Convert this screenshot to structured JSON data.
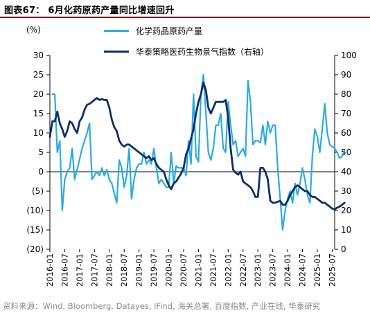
{
  "figure": {
    "title": "图表67： 6月化药原药产量同比增速回升",
    "left_unit": "(%)",
    "source": "资料来源：Wind, Bloomberg, Datayes, iFind, 海关总署, 百度指数, 产业在线, 华泰研究"
  },
  "colors": {
    "series_light": "#29ABE2",
    "series_dark": "#0B2E6B",
    "title_rule": "#8a1010"
  },
  "chart_data": {
    "type": "line",
    "title": "6月化药原药产量同比增速回升",
    "x_start": "2016-01",
    "x_end": "2025-08",
    "x_tick_labels": [
      "2016-01",
      "2016-07",
      "2017-01",
      "2017-07",
      "2018-01",
      "2018-07",
      "2019-01",
      "2019-07",
      "2020-01",
      "2020-07",
      "2021-01",
      "2021-07",
      "2022-01",
      "2022-07",
      "2023-01",
      "2023-07",
      "2024-01",
      "2024-07",
      "2025-01",
      "2025-07"
    ],
    "left_axis": {
      "label": "(%)",
      "ylim": [
        -20,
        30
      ],
      "ticks": [
        -20,
        -15,
        -10,
        -5,
        0,
        5,
        10,
        15,
        20,
        25,
        30
      ],
      "tick_labels": [
        "(20)",
        "(15)",
        "(10)",
        "(5)",
        "0",
        "5",
        "10",
        "15",
        "20",
        "25",
        "30"
      ]
    },
    "right_axis": {
      "ylim": [
        0,
        100
      ],
      "ticks": [
        0,
        10,
        20,
        30,
        40,
        50,
        60,
        70,
        80,
        90,
        100
      ],
      "tick_labels": [
        "0",
        "10",
        "20",
        "30",
        "40",
        "50",
        "60",
        "70",
        "80",
        "90",
        "100"
      ]
    },
    "grid": false,
    "legend_position": "top-center",
    "series": [
      {
        "name": "化学药品原药产量",
        "axis": "left",
        "color": "#29ABE2",
        "points": [
          [
            "2016-02",
            20
          ],
          [
            "2016-03",
            20
          ],
          [
            "2016-04",
            5
          ],
          [
            "2016-05",
            8
          ],
          [
            "2016-06",
            -10
          ],
          [
            "2016-07",
            -2
          ],
          [
            "2016-08",
            0
          ],
          [
            "2016-09",
            1
          ],
          [
            "2016-10",
            6
          ],
          [
            "2016-11",
            -2
          ],
          [
            "2016-12",
            0.5
          ],
          [
            "2017-02",
            6
          ],
          [
            "2017-04",
            10
          ],
          [
            "2017-05",
            12.5
          ],
          [
            "2017-06",
            -2
          ],
          [
            "2017-07",
            -1
          ],
          [
            "2017-08",
            0
          ],
          [
            "2017-09",
            -1
          ],
          [
            "2017-10",
            1
          ],
          [
            "2017-11",
            -1
          ],
          [
            "2017-12",
            0.5
          ],
          [
            "2018-01",
            -2
          ],
          [
            "2018-02",
            -3
          ],
          [
            "2018-03",
            -5.5
          ],
          [
            "2018-04",
            -8
          ],
          [
            "2018-05",
            3
          ],
          [
            "2018-06",
            1
          ],
          [
            "2018-07",
            -4
          ],
          [
            "2018-08",
            -1
          ],
          [
            "2018-09",
            6
          ],
          [
            "2018-10",
            -7
          ],
          [
            "2018-11",
            -2
          ],
          [
            "2018-12",
            1
          ],
          [
            "2019-01",
            2
          ],
          [
            "2019-02",
            2
          ],
          [
            "2019-03",
            5
          ],
          [
            "2019-04",
            2
          ],
          [
            "2019-05",
            3
          ],
          [
            "2019-06",
            2
          ],
          [
            "2019-07",
            6
          ],
          [
            "2019-08",
            1
          ],
          [
            "2019-09",
            -3
          ],
          [
            "2019-10",
            -2
          ],
          [
            "2019-11",
            -3
          ],
          [
            "2019-12",
            -4
          ],
          [
            "2020-01",
            -4
          ],
          [
            "2020-02",
            5
          ],
          [
            "2020-03",
            -3
          ],
          [
            "2020-04",
            1.5
          ],
          [
            "2020-05",
            1
          ],
          [
            "2020-06",
            1
          ],
          [
            "2020-07",
            1
          ],
          [
            "2020-08",
            -1
          ],
          [
            "2020-09",
            8
          ],
          [
            "2020-10",
            2
          ],
          [
            "2020-11",
            20
          ],
          [
            "2020-12",
            4
          ],
          [
            "2021-01",
            2.5
          ],
          [
            "2021-02",
            20
          ],
          [
            "2021-03",
            25
          ],
          [
            "2021-04",
            15
          ],
          [
            "2021-05",
            5
          ],
          [
            "2021-06",
            3
          ],
          [
            "2021-07",
            6
          ],
          [
            "2021-08",
            12
          ],
          [
            "2021-09",
            12
          ],
          [
            "2021-10",
            15
          ],
          [
            "2021-11",
            6
          ],
          [
            "2021-12",
            5
          ],
          [
            "2022-01",
            18
          ],
          [
            "2022-02",
            12
          ],
          [
            "2022-03",
            7
          ],
          [
            "2022-04",
            8
          ],
          [
            "2022-05",
            4
          ],
          [
            "2022-06",
            5
          ],
          [
            "2022-07",
            6
          ],
          [
            "2022-08",
            4
          ],
          [
            "2022-09",
            23.5
          ],
          [
            "2022-10",
            18
          ],
          [
            "2022-11",
            7
          ],
          [
            "2022-12",
            8
          ],
          [
            "2023-01",
            8
          ],
          [
            "2023-02",
            7.5
          ],
          [
            "2023-03",
            12
          ],
          [
            "2023-04",
            7
          ],
          [
            "2023-05",
            13
          ],
          [
            "2023-06",
            10
          ],
          [
            "2023-07",
            12
          ],
          [
            "2023-08",
            12
          ],
          [
            "2023-09",
            1
          ],
          [
            "2023-10",
            -7
          ],
          [
            "2023-11",
            -15
          ],
          [
            "2023-12",
            -10
          ],
          [
            "2024-01",
            -7
          ],
          [
            "2024-02",
            -5
          ],
          [
            "2024-03",
            -8
          ],
          [
            "2024-04",
            -3
          ],
          [
            "2024-05",
            -6
          ],
          [
            "2024-06",
            -3
          ],
          [
            "2024-07",
            1
          ],
          [
            "2024-08",
            -2
          ],
          [
            "2024-09",
            -6
          ],
          [
            "2024-10",
            -8
          ],
          [
            "2024-11",
            4
          ],
          [
            "2024-12",
            11
          ],
          [
            "2025-01",
            9
          ],
          [
            "2025-02",
            5
          ],
          [
            "2025-03",
            11
          ],
          [
            "2025-04",
            17.5
          ],
          [
            "2025-05",
            10
          ],
          [
            "2025-06",
            7
          ],
          [
            "2025-07",
            6.5
          ],
          [
            "2025-08",
            6
          ],
          [
            "2025-09",
            5
          ],
          [
            "2025-10",
            3.5
          ],
          [
            "2025-11",
            4
          ],
          [
            "2025-12",
            5.5
          ]
        ]
      },
      {
        "name": "华泰策略医药生物景气指数（右轴）",
        "axis": "right",
        "color": "#0B2E6B",
        "points": [
          [
            "2016-01",
            58
          ],
          [
            "2016-02",
            66
          ],
          [
            "2016-03",
            66
          ],
          [
            "2016-04",
            71
          ],
          [
            "2016-05",
            65
          ],
          [
            "2016-06",
            62
          ],
          [
            "2016-07",
            58
          ],
          [
            "2016-08",
            61
          ],
          [
            "2016-09",
            66
          ],
          [
            "2016-10",
            65
          ],
          [
            "2016-11",
            62
          ],
          [
            "2016-12",
            60
          ],
          [
            "2017-01",
            66
          ],
          [
            "2017-02",
            68
          ],
          [
            "2017-03",
            72
          ],
          [
            "2017-04",
            74.5
          ],
          [
            "2017-05",
            75
          ],
          [
            "2017-06",
            76
          ],
          [
            "2017-07",
            77
          ],
          [
            "2017-08",
            78
          ],
          [
            "2017-09",
            77
          ],
          [
            "2017-10",
            77.5
          ],
          [
            "2017-11",
            77
          ],
          [
            "2017-12",
            77
          ],
          [
            "2018-01",
            73
          ],
          [
            "2018-02",
            67
          ],
          [
            "2018-03",
            63
          ],
          [
            "2018-04",
            61
          ],
          [
            "2018-05",
            56
          ],
          [
            "2018-06",
            54
          ],
          [
            "2018-07",
            53
          ],
          [
            "2018-08",
            54
          ],
          [
            "2018-09",
            54
          ],
          [
            "2018-10",
            53
          ],
          [
            "2018-11",
            52
          ],
          [
            "2018-12",
            51
          ],
          [
            "2019-01",
            50
          ],
          [
            "2019-02",
            49
          ],
          [
            "2019-03",
            48
          ],
          [
            "2019-04",
            47
          ],
          [
            "2019-05",
            48
          ],
          [
            "2019-06",
            46
          ],
          [
            "2019-07",
            47
          ],
          [
            "2019-08",
            44
          ],
          [
            "2019-09",
            42
          ],
          [
            "2019-10",
            41
          ],
          [
            "2019-11",
            40
          ],
          [
            "2019-12",
            36
          ],
          [
            "2020-01",
            33
          ],
          [
            "2020-02",
            31
          ],
          [
            "2020-03",
            34
          ],
          [
            "2020-04",
            35
          ],
          [
            "2020-05",
            37
          ],
          [
            "2020-06",
            39
          ],
          [
            "2020-07",
            42
          ],
          [
            "2020-08",
            49
          ],
          [
            "2020-09",
            52
          ],
          [
            "2020-10",
            57
          ],
          [
            "2020-11",
            62
          ],
          [
            "2020-12",
            70
          ],
          [
            "2021-01",
            76
          ],
          [
            "2021-02",
            80
          ],
          [
            "2021-03",
            86
          ],
          [
            "2021-04",
            82
          ],
          [
            "2021-05",
            73
          ],
          [
            "2021-06",
            70
          ],
          [
            "2021-07",
            73
          ],
          [
            "2021-08",
            76
          ],
          [
            "2021-09",
            76
          ],
          [
            "2021-10",
            76
          ],
          [
            "2021-11",
            76
          ],
          [
            "2021-12",
            77
          ],
          [
            "2022-01",
            68
          ],
          [
            "2022-02",
            52
          ],
          [
            "2022-03",
            41
          ],
          [
            "2022-04",
            39.5
          ],
          [
            "2022-05",
            38.5
          ],
          [
            "2022-06",
            40
          ],
          [
            "2022-07",
            35
          ],
          [
            "2022-08",
            34
          ],
          [
            "2022-09",
            33
          ],
          [
            "2022-10",
            32
          ],
          [
            "2022-11",
            30
          ],
          [
            "2022-12",
            27
          ],
          [
            "2023-01",
            27
          ],
          [
            "2023-02",
            42
          ],
          [
            "2023-03",
            42
          ],
          [
            "2023-04",
            40
          ],
          [
            "2023-05",
            36
          ],
          [
            "2023-06",
            25
          ],
          [
            "2023-07",
            24
          ],
          [
            "2023-08",
            24
          ],
          [
            "2023-09",
            24.5
          ],
          [
            "2023-10",
            25
          ],
          [
            "2023-11",
            23
          ],
          [
            "2023-12",
            23
          ],
          [
            "2024-01",
            25
          ],
          [
            "2024-02",
            28
          ],
          [
            "2024-03",
            30
          ],
          [
            "2024-04",
            32
          ],
          [
            "2024-05",
            33
          ],
          [
            "2024-06",
            32
          ],
          [
            "2024-07",
            31
          ],
          [
            "2024-08",
            30
          ],
          [
            "2024-09",
            30
          ],
          [
            "2024-10",
            28
          ],
          [
            "2024-11",
            27
          ],
          [
            "2024-12",
            27
          ],
          [
            "2025-01",
            26
          ],
          [
            "2025-02",
            25
          ],
          [
            "2025-03",
            24
          ],
          [
            "2025-04",
            24
          ],
          [
            "2025-05",
            23
          ],
          [
            "2025-06",
            22
          ],
          [
            "2025-07",
            21
          ],
          [
            "2025-08",
            20.5
          ],
          [
            "2025-09",
            21.5
          ],
          [
            "2025-10",
            22
          ],
          [
            "2025-11",
            23
          ],
          [
            "2025-12",
            24
          ]
        ]
      }
    ]
  }
}
